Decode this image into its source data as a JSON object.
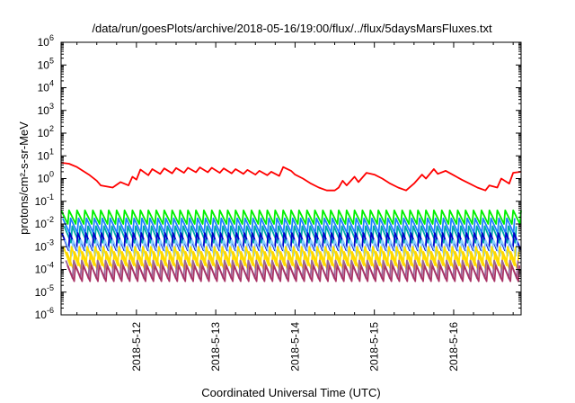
{
  "chart_data": {
    "type": "line",
    "title": "/data/run/goesPlots/archive/2018-05-16/19:00/flux/../flux/5daysMarsFluxes.txt",
    "xlabel": "Coordinated Universal Time (UTC)",
    "ylabel": "protons/cm²-s-sr-MeV",
    "y_scale": "log",
    "ylim": [
      1e-06,
      1000000.0
    ],
    "x_unit": "days after 2018-05-11 00:00 UTC",
    "xlim": [
      0.05,
      5.85
    ],
    "x_ticks": [
      {
        "x": 1,
        "label": "2018-5-12"
      },
      {
        "x": 2,
        "label": "2018-5-13"
      },
      {
        "x": 3,
        "label": "2018-5-14"
      },
      {
        "x": 4,
        "label": "2018-5-15"
      },
      {
        "x": 5,
        "label": "2018-5-16"
      }
    ],
    "y_ticks": [
      {
        "value": 1e-06,
        "base": "10",
        "exp": "-6"
      },
      {
        "value": 1e-05,
        "base": "10",
        "exp": "-5"
      },
      {
        "value": 0.0001,
        "base": "10",
        "exp": "-4"
      },
      {
        "value": 0.001,
        "base": "10",
        "exp": "-3"
      },
      {
        "value": 0.01,
        "base": "10",
        "exp": "-2"
      },
      {
        "value": 0.1,
        "base": "10",
        "exp": "-1"
      },
      {
        "value": 1.0,
        "base": "10",
        "exp": "0"
      },
      {
        "value": 10.0,
        "base": "10",
        "exp": "1"
      },
      {
        "value": 100.0,
        "base": "10",
        "exp": "2"
      },
      {
        "value": 1000.0,
        "base": "10",
        "exp": "3"
      },
      {
        "value": 10000.0,
        "base": "10",
        "exp": "4"
      },
      {
        "value": 100000.0,
        "base": "10",
        "exp": "5"
      },
      {
        "value": 1000000.0,
        "base": "10",
        "exp": "6"
      }
    ],
    "grid": false,
    "legend": "none",
    "series": [
      {
        "color": "#ff0000",
        "x": [
          0.05,
          0.15,
          0.25,
          0.4,
          0.5,
          0.55,
          0.7,
          0.8,
          0.9,
          0.95,
          1.0,
          1.05,
          1.15,
          1.2,
          1.3,
          1.35,
          1.45,
          1.5,
          1.6,
          1.65,
          1.75,
          1.8,
          1.9,
          1.95,
          2.05,
          2.1,
          2.2,
          2.25,
          2.35,
          2.4,
          2.5,
          2.55,
          2.65,
          2.7,
          2.8,
          2.85,
          2.95,
          3.0,
          3.1,
          3.2,
          3.3,
          3.4,
          3.5,
          3.55,
          3.6,
          3.65,
          3.75,
          3.8,
          3.9,
          4.0,
          4.1,
          4.2,
          4.3,
          4.4,
          4.5,
          4.6,
          4.65,
          4.75,
          4.8,
          4.9,
          5.0,
          5.1,
          5.2,
          5.3,
          5.4,
          5.45,
          5.55,
          5.6,
          5.7,
          5.75,
          5.85
        ],
        "y": [
          5,
          4.5,
          3.2,
          1.5,
          0.8,
          0.5,
          0.4,
          0.7,
          0.5,
          1.2,
          0.9,
          2.5,
          1.4,
          2.6,
          1.6,
          2.8,
          1.7,
          2.9,
          1.8,
          3.0,
          1.9,
          3.1,
          1.9,
          3.0,
          1.8,
          2.8,
          1.7,
          2.6,
          1.6,
          2.4,
          1.5,
          2.2,
          1.4,
          2.0,
          1.3,
          3.2,
          2.2,
          1.5,
          1.0,
          0.6,
          0.4,
          0.3,
          0.3,
          0.4,
          0.8,
          0.5,
          1.2,
          0.7,
          1.8,
          1.5,
          1.0,
          0.6,
          0.4,
          0.3,
          0.6,
          1.5,
          1.0,
          2.6,
          1.6,
          2.2,
          1.4,
          0.9,
          0.6,
          0.4,
          0.3,
          0.5,
          0.4,
          1.0,
          0.6,
          1.8,
          2.0
        ]
      },
      {
        "color": "#00ee00",
        "period": 0.1,
        "phase": 0.0,
        "min": 0.01,
        "max": 0.04
      },
      {
        "color": "#1e7fff",
        "period": 0.1,
        "phase": 0.02,
        "min": 0.004,
        "max": 0.018
      },
      {
        "color": "#00aaaa",
        "period": 0.1,
        "phase": 0.04,
        "min": 0.0015,
        "max": 0.008
      },
      {
        "color": "#0000cc",
        "period": 0.1,
        "phase": 0.01,
        "min": 0.0007,
        "max": 0.004
      },
      {
        "color": "#88ccff",
        "period": 0.1,
        "phase": 0.05,
        "min": 0.0004,
        "max": 0.002
      },
      {
        "color": "#ffe000",
        "period": 0.1,
        "phase": 0.03,
        "min": 0.00015,
        "max": 0.001
      },
      {
        "color": "#ffd700",
        "period": 0.1,
        "phase": 0.07,
        "min": 0.0001,
        "max": 0.0006
      },
      {
        "color": "#996699",
        "period": 0.1,
        "phase": 0.06,
        "min": 4e-05,
        "max": 0.00025
      },
      {
        "color": "#aa3366",
        "period": 0.1,
        "phase": 0.08,
        "min": 3e-05,
        "max": 0.00015
      }
    ]
  }
}
